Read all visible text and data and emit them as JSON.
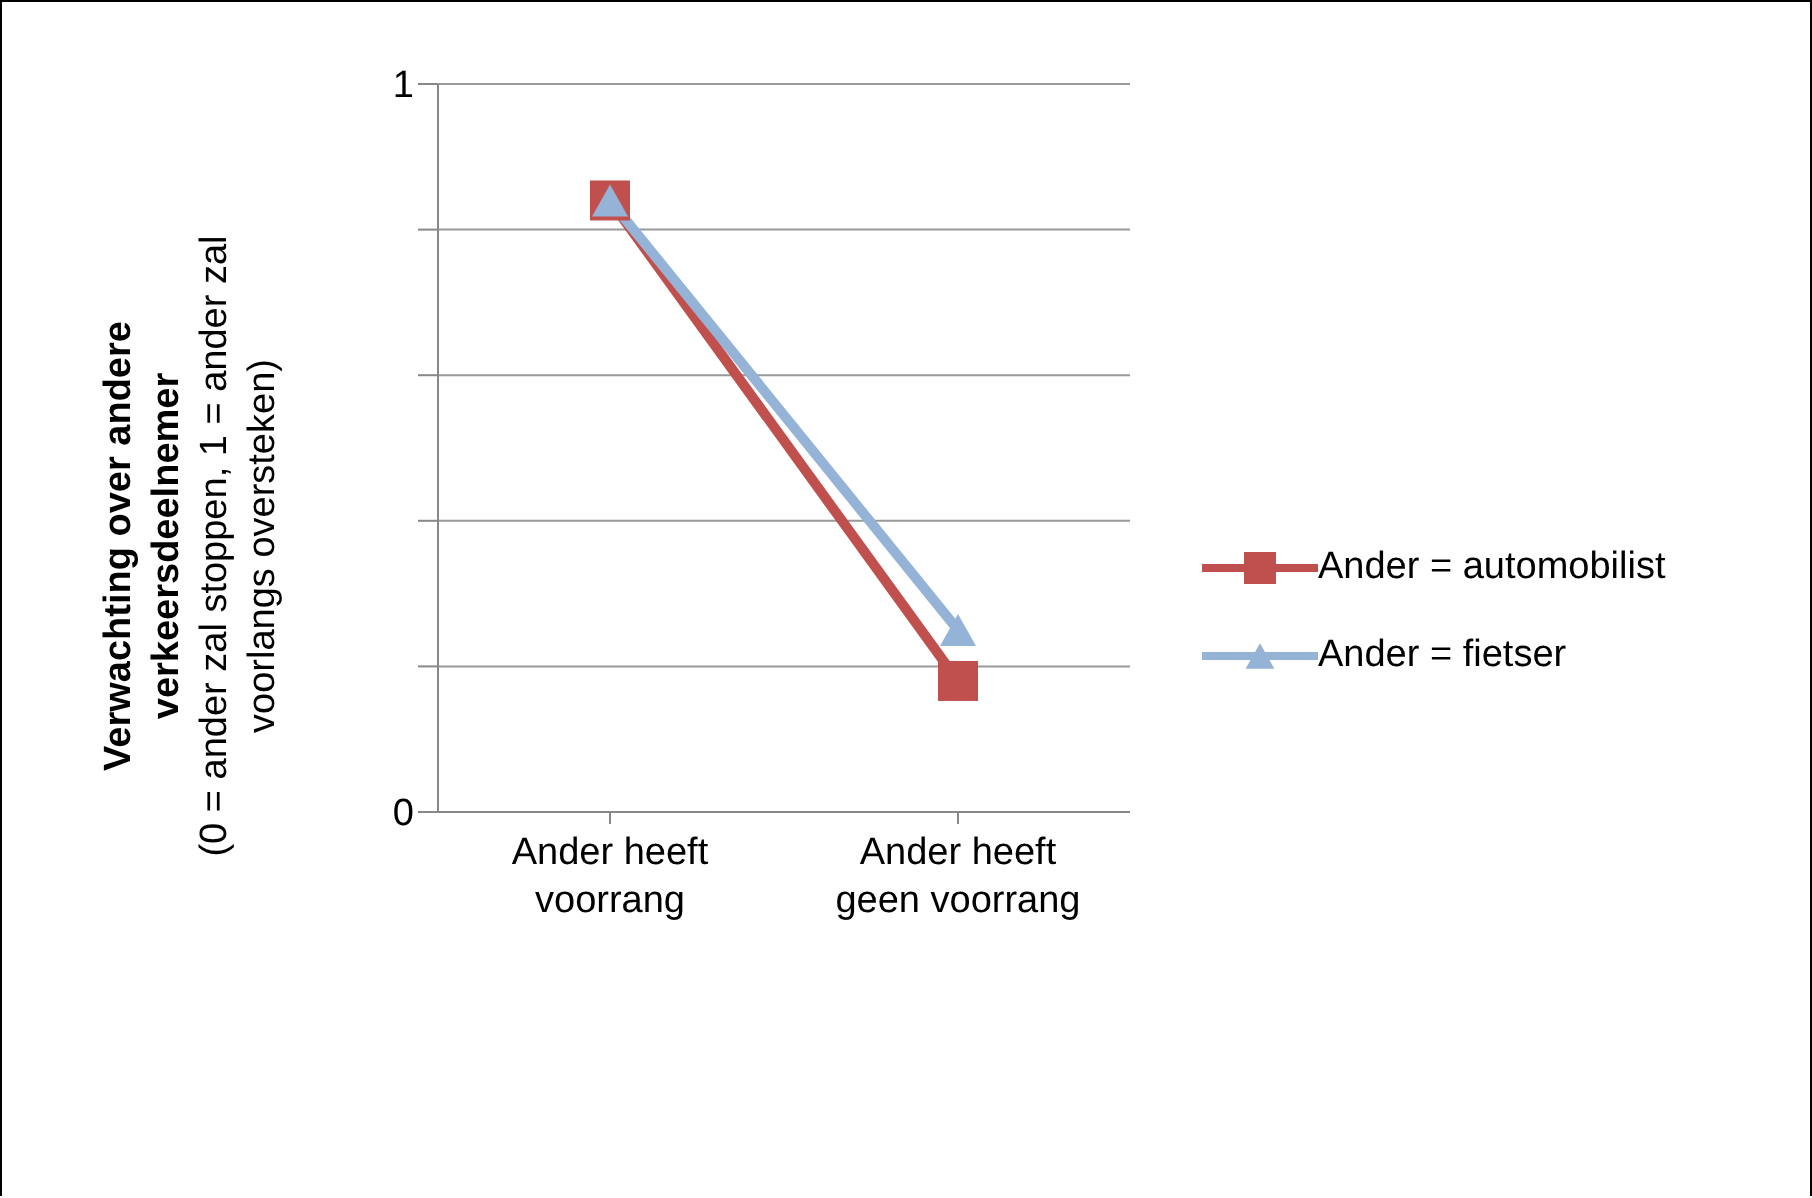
{
  "chart_data": {
    "type": "line",
    "ylabel": "Verwachting over andere verkeersdeelnemer (0 = ander zal stoppen, 1 = ander zal voorlangs oversteken)",
    "categories": [
      "Ander heeft voorrang",
      "Ander heeft geen voorrang"
    ],
    "series": [
      {
        "name": "Ander = automobilist",
        "color": "#c0504d",
        "values": [
          0.84,
          0.18
        ],
        "marker": "square"
      },
      {
        "name": "Ander = fietser",
        "color": "#95b3d7",
        "values": [
          0.84,
          0.25
        ],
        "marker": "triangle"
      }
    ],
    "ylim": [
      0,
      1
    ],
    "yticks": [
      0,
      {
        "value": 0.2,
        "label": null
      },
      {
        "value": 0.4,
        "label": null
      },
      {
        "value": 0.6,
        "label": null
      },
      {
        "value": 0.8,
        "label": null
      },
      1
    ],
    "grid": "y",
    "legend": "right",
    "line_style": "solid"
  }
}
